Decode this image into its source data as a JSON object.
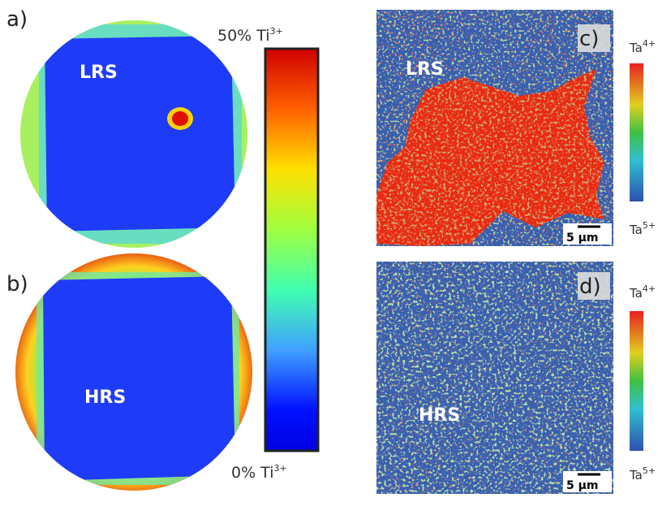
{
  "panels": [
    {
      "label": "a)",
      "state": "LRS"
    },
    {
      "label": "b)",
      "state": "HRS"
    },
    {
      "label": "c)",
      "state": "LRS",
      "scale": "5 µm"
    },
    {
      "label": "d)",
      "state": "HRS",
      "scale": "5 µm"
    }
  ],
  "ti_colorbar": {
    "top": {
      "text": "50% Ti",
      "sup": "3+"
    },
    "bottom": {
      "text": "0% Ti",
      "sup": "3+"
    }
  },
  "ta_colorbar": {
    "top": {
      "text": "Ta",
      "sup": "4+"
    },
    "bottom": {
      "text": "Ta",
      "sup": "5+"
    }
  }
}
